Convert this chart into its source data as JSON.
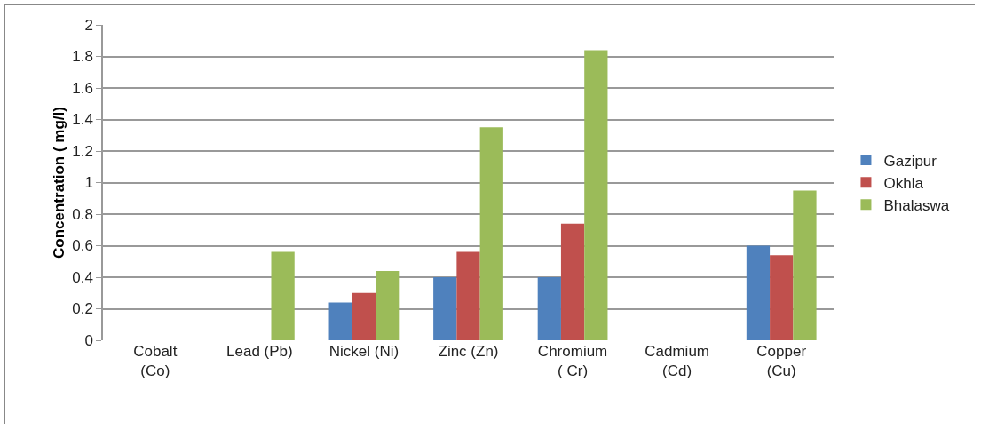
{
  "chart_data": {
    "type": "bar",
    "ylabel": "Concentration ( mg/l)",
    "categories": [
      "Cobalt\n(Co)",
      "Lead (Pb)",
      "Nickel (Ni)",
      "Zinc (Zn)",
      "Chromium\n( Cr)",
      "Cadmium\n(Cd)",
      "Copper\n(Cu)"
    ],
    "series": [
      {
        "name": "Gazipur",
        "color": "#4f81bd",
        "values": [
          0,
          0,
          0.24,
          0.4,
          0.4,
          0,
          0.6
        ]
      },
      {
        "name": "Okhla",
        "color": "#c0504d",
        "values": [
          0,
          0,
          0.3,
          0.56,
          0.74,
          0,
          0.54
        ]
      },
      {
        "name": "Bhalaswa",
        "color": "#9bbb59",
        "values": [
          0,
          0.56,
          0.44,
          1.35,
          1.84,
          0,
          0.95
        ]
      }
    ],
    "ylim": [
      0,
      2
    ],
    "yticks": [
      0,
      0.2,
      0.4,
      0.6,
      0.8,
      1,
      1.2,
      1.4,
      1.6,
      1.8,
      2
    ],
    "grid": "y",
    "legend": "right"
  }
}
